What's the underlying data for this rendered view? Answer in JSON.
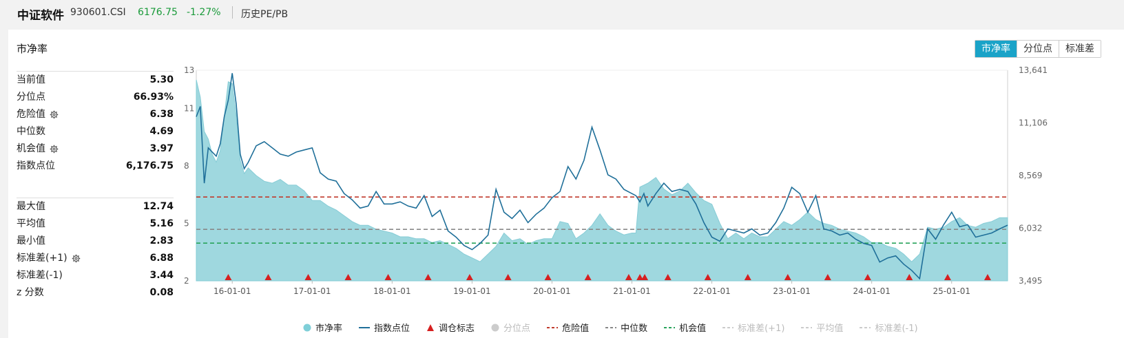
{
  "header": {
    "name": "中证软件",
    "code": "930601.CSI",
    "price": "6176.75",
    "change": "-1.27%",
    "view": "历史PE/PB"
  },
  "panel": {
    "title": "市净率",
    "tabs": [
      "市净率",
      "分位点",
      "标准差"
    ],
    "active_tab": 0
  },
  "stats_top": [
    {
      "label": "当前值",
      "value": "5.30",
      "gear": false
    },
    {
      "label": "分位点",
      "value": "66.93%",
      "gear": false
    },
    {
      "label": "危险值",
      "value": "6.38",
      "gear": true
    },
    {
      "label": "中位数",
      "value": "4.69",
      "gear": false
    },
    {
      "label": "机会值",
      "value": "3.97",
      "gear": true
    },
    {
      "label": "指数点位",
      "value": "6,176.75",
      "gear": false
    }
  ],
  "stats_bottom": [
    {
      "label": "最大值",
      "value": "12.74",
      "gear": false
    },
    {
      "label": "平均值",
      "value": "5.16",
      "gear": false
    },
    {
      "label": "最小值",
      "value": "2.83",
      "gear": false
    },
    {
      "label": "标准差(+1)",
      "value": "6.88",
      "gear": true
    },
    {
      "label": "标准差(-1)",
      "value": "3.44",
      "gear": false
    },
    {
      "label": "z 分数",
      "value": "0.08",
      "gear": false
    }
  ],
  "legend": [
    {
      "label": "市净率",
      "kind": "dot",
      "color": "#7fcfd8",
      "dim": false
    },
    {
      "label": "指数点位",
      "kind": "line",
      "color": "#1f6f99",
      "dim": false
    },
    {
      "label": "调仓标志",
      "kind": "triangle",
      "color": "#d62020",
      "dim": false
    },
    {
      "label": "分位点",
      "kind": "dot",
      "color": "#cccccc",
      "dim": true
    },
    {
      "label": "危险值",
      "kind": "dash",
      "color": "#c0392b",
      "dim": false
    },
    {
      "label": "中位数",
      "kind": "dash",
      "color": "#888888",
      "dim": false
    },
    {
      "label": "机会值",
      "kind": "dash",
      "color": "#27a35a",
      "dim": false
    },
    {
      "label": "标准差(+1)",
      "kind": "dash",
      "color": "#cccccc",
      "dim": true
    },
    {
      "label": "平均值",
      "kind": "dash",
      "color": "#cccccc",
      "dim": true
    },
    {
      "label": "标准差(-1)",
      "kind": "dash",
      "color": "#cccccc",
      "dim": true
    }
  ],
  "chart_data": {
    "type": "area",
    "x_ticks": [
      "16-01-01",
      "17-01-01",
      "18-01-01",
      "19-01-01",
      "20-01-01",
      "21-01-01",
      "22-01-01",
      "23-01-01",
      "24-01-01",
      "25-01-01"
    ],
    "x_range": [
      2015.55,
      2025.7
    ],
    "y_left_ticks": [
      "2",
      "5",
      "8",
      "11",
      "13"
    ],
    "y_left_range": [
      2,
      13
    ],
    "y_right_ticks": [
      "3,495",
      "6,032",
      "8,569",
      "11,106",
      "13,641"
    ],
    "y_right_range": [
      3495,
      13641
    ],
    "reference_lines": [
      {
        "name": "危险值",
        "value": 6.38,
        "color": "#c0392b"
      },
      {
        "name": "中位数",
        "value": 4.69,
        "color": "#888888"
      },
      {
        "name": "机会值",
        "value": 3.97,
        "color": "#27a35a"
      }
    ],
    "series": [
      {
        "name": "市净率",
        "x": [
          2015.55,
          2015.6,
          2015.65,
          2015.7,
          2015.75,
          2015.8,
          2015.85,
          2015.9,
          2015.95,
          2016.0,
          2016.05,
          2016.1,
          2016.15,
          2016.2,
          2016.3,
          2016.4,
          2016.5,
          2016.6,
          2016.7,
          2016.8,
          2016.9,
          2017.0,
          2017.1,
          2017.2,
          2017.3,
          2017.4,
          2017.5,
          2017.6,
          2017.7,
          2017.8,
          2017.9,
          2018.0,
          2018.1,
          2018.2,
          2018.3,
          2018.4,
          2018.5,
          2018.6,
          2018.7,
          2018.8,
          2018.9,
          2019.0,
          2019.1,
          2019.2,
          2019.3,
          2019.4,
          2019.5,
          2019.6,
          2019.7,
          2019.8,
          2019.9,
          2020.0,
          2020.1,
          2020.2,
          2020.3,
          2020.4,
          2020.5,
          2020.6,
          2020.7,
          2020.8,
          2020.9,
          2021.0,
          2021.05,
          2021.1,
          2021.15,
          2021.2,
          2021.3,
          2021.4,
          2021.5,
          2021.6,
          2021.7,
          2021.8,
          2021.9,
          2022.0,
          2022.1,
          2022.2,
          2022.3,
          2022.4,
          2022.5,
          2022.6,
          2022.7,
          2022.8,
          2022.9,
          2023.0,
          2023.1,
          2023.2,
          2023.3,
          2023.4,
          2023.5,
          2023.6,
          2023.7,
          2023.8,
          2023.9,
          2024.0,
          2024.1,
          2024.2,
          2024.3,
          2024.4,
          2024.5,
          2024.6,
          2024.7,
          2024.8,
          2024.9,
          2025.0,
          2025.1,
          2025.2,
          2025.3,
          2025.4,
          2025.5,
          2025.6,
          2025.7
        ],
        "y": [
          12.5,
          11.6,
          9.8,
          9.4,
          8.6,
          8.2,
          8.8,
          10.6,
          12.4,
          12.3,
          10.6,
          8.3,
          7.6,
          7.9,
          7.5,
          7.2,
          7.1,
          7.3,
          7.0,
          7.0,
          6.7,
          6.2,
          6.2,
          5.9,
          5.7,
          5.4,
          5.1,
          4.9,
          4.9,
          4.7,
          4.6,
          4.5,
          4.3,
          4.3,
          4.2,
          4.2,
          4.0,
          4.1,
          3.9,
          3.7,
          3.4,
          3.2,
          3.0,
          3.4,
          3.8,
          4.5,
          4.1,
          4.2,
          3.9,
          4.1,
          4.2,
          4.2,
          5.1,
          5.0,
          4.2,
          4.5,
          4.9,
          5.5,
          4.9,
          4.6,
          4.4,
          4.5,
          4.5,
          6.9,
          7.0,
          7.1,
          7.4,
          6.8,
          6.5,
          6.7,
          7.1,
          6.6,
          6.2,
          6.0,
          5.0,
          4.2,
          4.5,
          4.2,
          4.5,
          4.3,
          4.3,
          4.7,
          5.1,
          4.9,
          5.2,
          5.6,
          5.2,
          5.0,
          4.9,
          4.7,
          4.6,
          4.5,
          4.3,
          4.0,
          4.0,
          3.8,
          3.7,
          3.4,
          3.0,
          3.4,
          4.8,
          4.7,
          4.8,
          5.1,
          5.3,
          4.9,
          4.8,
          5.0,
          5.1,
          5.3,
          5.3
        ]
      },
      {
        "name": "指数点位",
        "x": [
          2015.55,
          2015.6,
          2015.65,
          2015.7,
          2015.75,
          2015.8,
          2015.85,
          2015.9,
          2015.95,
          2016.0,
          2016.05,
          2016.1,
          2016.15,
          2016.2,
          2016.3,
          2016.4,
          2016.5,
          2016.6,
          2016.7,
          2016.8,
          2016.9,
          2017.0,
          2017.1,
          2017.2,
          2017.3,
          2017.4,
          2017.5,
          2017.6,
          2017.7,
          2017.8,
          2017.9,
          2018.0,
          2018.1,
          2018.2,
          2018.3,
          2018.4,
          2018.5,
          2018.6,
          2018.7,
          2018.8,
          2018.9,
          2019.0,
          2019.1,
          2019.2,
          2019.3,
          2019.4,
          2019.5,
          2019.6,
          2019.7,
          2019.8,
          2019.9,
          2020.0,
          2020.1,
          2020.2,
          2020.3,
          2020.4,
          2020.5,
          2020.6,
          2020.7,
          2020.8,
          2020.9,
          2021.0,
          2021.05,
          2021.1,
          2021.15,
          2021.2,
          2021.3,
          2021.4,
          2021.5,
          2021.6,
          2021.7,
          2021.8,
          2021.9,
          2022.0,
          2022.1,
          2022.2,
          2022.3,
          2022.4,
          2022.5,
          2022.6,
          2022.7,
          2022.8,
          2022.9,
          2023.0,
          2023.1,
          2023.2,
          2023.3,
          2023.4,
          2023.5,
          2023.6,
          2023.7,
          2023.8,
          2023.9,
          2024.0,
          2024.1,
          2024.2,
          2024.3,
          2024.4,
          2024.5,
          2024.6,
          2024.7,
          2024.8,
          2024.9,
          2025.0,
          2025.1,
          2025.2,
          2025.3,
          2025.4,
          2025.5,
          2025.6,
          2025.7
        ],
        "y": [
          11400,
          11900,
          8200,
          9900,
          9700,
          9500,
          10100,
          11400,
          12200,
          13500,
          12000,
          9600,
          8900,
          9200,
          10000,
          10200,
          9900,
          9600,
          9500,
          9700,
          9800,
          9900,
          8700,
          8400,
          8300,
          7700,
          7400,
          7000,
          7100,
          7800,
          7200,
          7200,
          7300,
          7100,
          7000,
          7600,
          6600,
          6900,
          5900,
          5600,
          5200,
          5000,
          5300,
          5700,
          7900,
          6800,
          6500,
          6900,
          6300,
          6700,
          7000,
          7500,
          7800,
          9000,
          8400,
          9300,
          10900,
          9800,
          8600,
          8400,
          7900,
          7700,
          7600,
          7300,
          7700,
          7100,
          7700,
          8200,
          7800,
          7900,
          7800,
          7200,
          6300,
          5600,
          5400,
          6000,
          5900,
          5800,
          6000,
          5700,
          5800,
          6300,
          7000,
          8000,
          7700,
          6800,
          7600,
          6000,
          5900,
          5700,
          5800,
          5500,
          5300,
          5200,
          4400,
          4600,
          4700,
          4300,
          4000,
          3600,
          6000,
          5500,
          6200,
          6800,
          6100,
          6200,
          5600,
          5700,
          5800,
          6000,
          6177
        ]
      }
    ],
    "rebalance_markers": [
      2015.95,
      2016.45,
      2016.95,
      2017.45,
      2017.95,
      2018.45,
      2018.97,
      2019.45,
      2019.95,
      2020.45,
      2020.96,
      2021.1,
      2021.16,
      2021.45,
      2021.95,
      2022.45,
      2022.95,
      2023.45,
      2023.95,
      2024.47,
      2024.95,
      2025.45
    ]
  }
}
